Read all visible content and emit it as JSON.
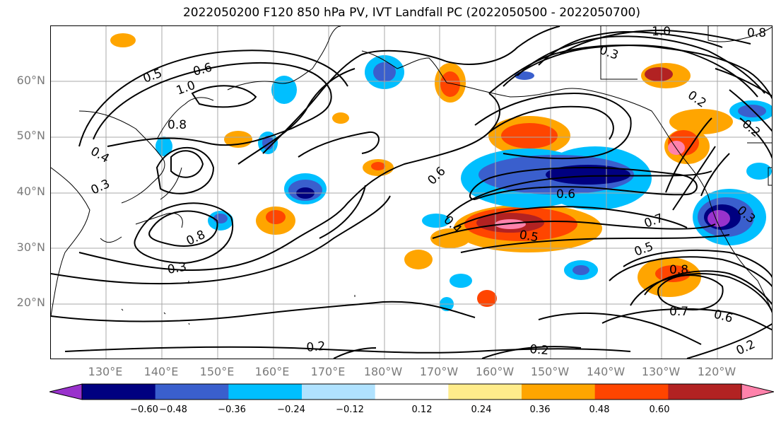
{
  "title": "2022050200 F120 850 hPa PV, IVT Landfall PC (2022050500 - 2022050700)",
  "lat_labels": [
    "60°N",
    "50°N",
    "40°N",
    "30°N",
    "20°N"
  ],
  "lon_labels": [
    "130°E",
    "140°E",
    "150°E",
    "160°E",
    "170°E",
    "180°W",
    "170°W",
    "160°W",
    "150°W",
    "140°W",
    "130°W",
    "120°W"
  ],
  "contour_labels": [
    "0.5",
    "0.6",
    "1.0",
    "0.8",
    "0.4",
    "0.3",
    "0.8",
    "0.6",
    "0.4",
    "0.6",
    "0.5",
    "0.7",
    "0.5",
    "0.8",
    "0.7",
    "0.6",
    "0.3",
    "0.2",
    "0.2",
    "0.2",
    "1.0",
    "0.8",
    "0.3",
    "0.2",
    "0.2",
    "0.3"
  ],
  "colorbar": {
    "ticks": [
      "−0.60",
      "−0.48",
      "−0.36",
      "−0.24",
      "−0.12",
      "0.12",
      "0.24",
      "0.36",
      "0.48",
      "0.60"
    ],
    "colors": [
      "#9932cc",
      "#000080",
      "#3a5fcd",
      "#00bfff",
      "#b0e2ff",
      "#ffffff",
      "#ffec8b",
      "#ffa500",
      "#ff4500",
      "#b22222",
      "#ff82ab"
    ]
  },
  "colors": {
    "contour": "#000000",
    "grid": "#a9a9a9",
    "coast": "#000000"
  }
}
